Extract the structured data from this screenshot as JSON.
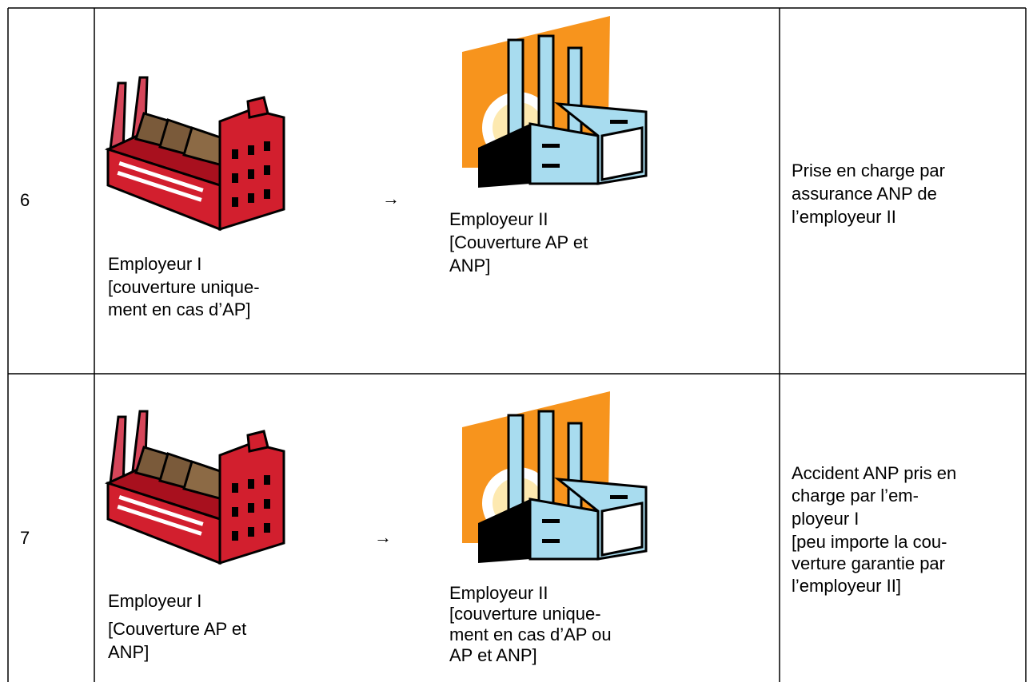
{
  "table": {
    "rows": [
      {
        "number": "6",
        "employer_1": {
          "lines": [
            "Employeur I",
            "[couverture unique-",
            "ment en cas d’AP]"
          ]
        },
        "arrow": "→",
        "employer_2": {
          "lines": [
            "Employeur II",
            "[Couverture AP et",
            "ANP]"
          ]
        },
        "outcome": {
          "lines": [
            "Prise en charge par",
            "assurance ANP de",
            "l’employeur II"
          ]
        }
      },
      {
        "number": "7",
        "employer_1": {
          "lines": [
            "Employeur I",
            "[Couverture AP et",
            "ANP]"
          ]
        },
        "arrow": "→",
        "employer_2": {
          "lines": [
            "Employeur II",
            "[couverture unique-",
            "ment en cas d’AP ou",
            "AP et ANP]"
          ]
        },
        "outcome": {
          "lines": [
            "Accident ANP pris en",
            "charge par l’em-",
            "ployeur I",
            "[peu importe la cou-",
            "verture garantie par",
            "l’employeur II]"
          ]
        }
      }
    ]
  }
}
